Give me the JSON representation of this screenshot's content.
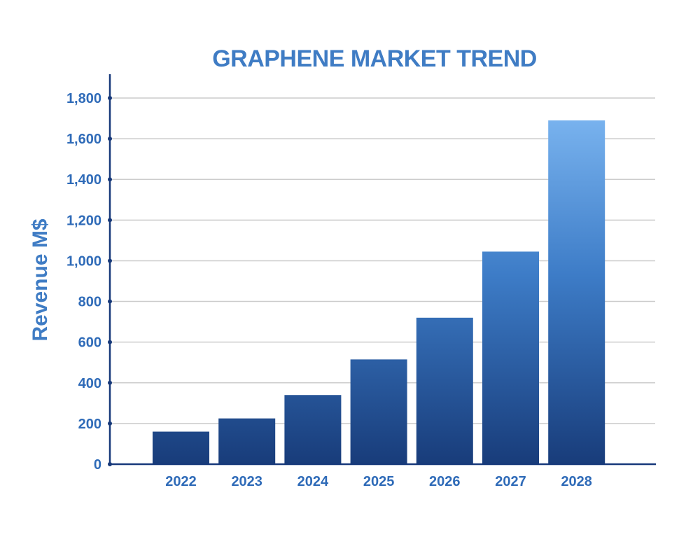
{
  "chart_data": {
    "type": "bar",
    "title": "GRAPHENE MARKET TREND",
    "xlabel": "",
    "ylabel": "Revenue M$",
    "categories": [
      "2022",
      "2023",
      "2024",
      "2025",
      "2026",
      "2027",
      "2028"
    ],
    "values": [
      160,
      225,
      340,
      515,
      720,
      1045,
      1690
    ],
    "ylim": [
      0,
      1800
    ],
    "yticks": [
      0,
      200,
      400,
      600,
      800,
      1000,
      1200,
      1400,
      1600,
      1800
    ],
    "ytick_labels": [
      "0",
      "200",
      "400",
      "600",
      "800",
      "1,000",
      "1,200",
      "1,400",
      "1,600",
      "1,800"
    ],
    "grid": true,
    "legend": "none",
    "colors": {
      "title": "#3f7cc4",
      "axis": "#17397a",
      "tick_text": "#2f6bb8",
      "grid": "#cccccc",
      "bar_bottom": "#183c7a",
      "bar_top_max": "#78b2ee"
    }
  }
}
